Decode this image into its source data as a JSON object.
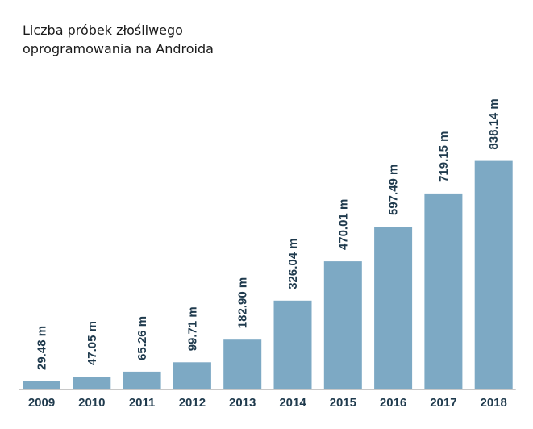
{
  "title_lines": [
    "Liczba próbek złośliwego",
    "oprogramowania na Androida"
  ],
  "colors": {
    "bar": "#7da9c4",
    "text": "#1f3a4d",
    "axis": "#c8c8c8"
  },
  "chart_data": {
    "type": "bar",
    "title": "Liczba próbek złośliwego oprogramowania na Androida",
    "xlabel": "",
    "ylabel": "",
    "categories": [
      "2009",
      "2010",
      "2011",
      "2012",
      "2013",
      "2014",
      "2015",
      "2016",
      "2017",
      "2018"
    ],
    "values": [
      29.48,
      47.05,
      65.26,
      99.71,
      182.9,
      326.04,
      470.01,
      597.49,
      719.15,
      838.14
    ],
    "data_labels": [
      "29.48 m",
      "47.05 m",
      "65.26 m",
      "99.71 m",
      "182.90 m",
      "326.04 m",
      "470.01 m",
      "597.49 m",
      "719.15 m",
      "838.14 m"
    ],
    "ylim": [
      0,
      1000
    ],
    "grid": false,
    "legend": "none"
  }
}
